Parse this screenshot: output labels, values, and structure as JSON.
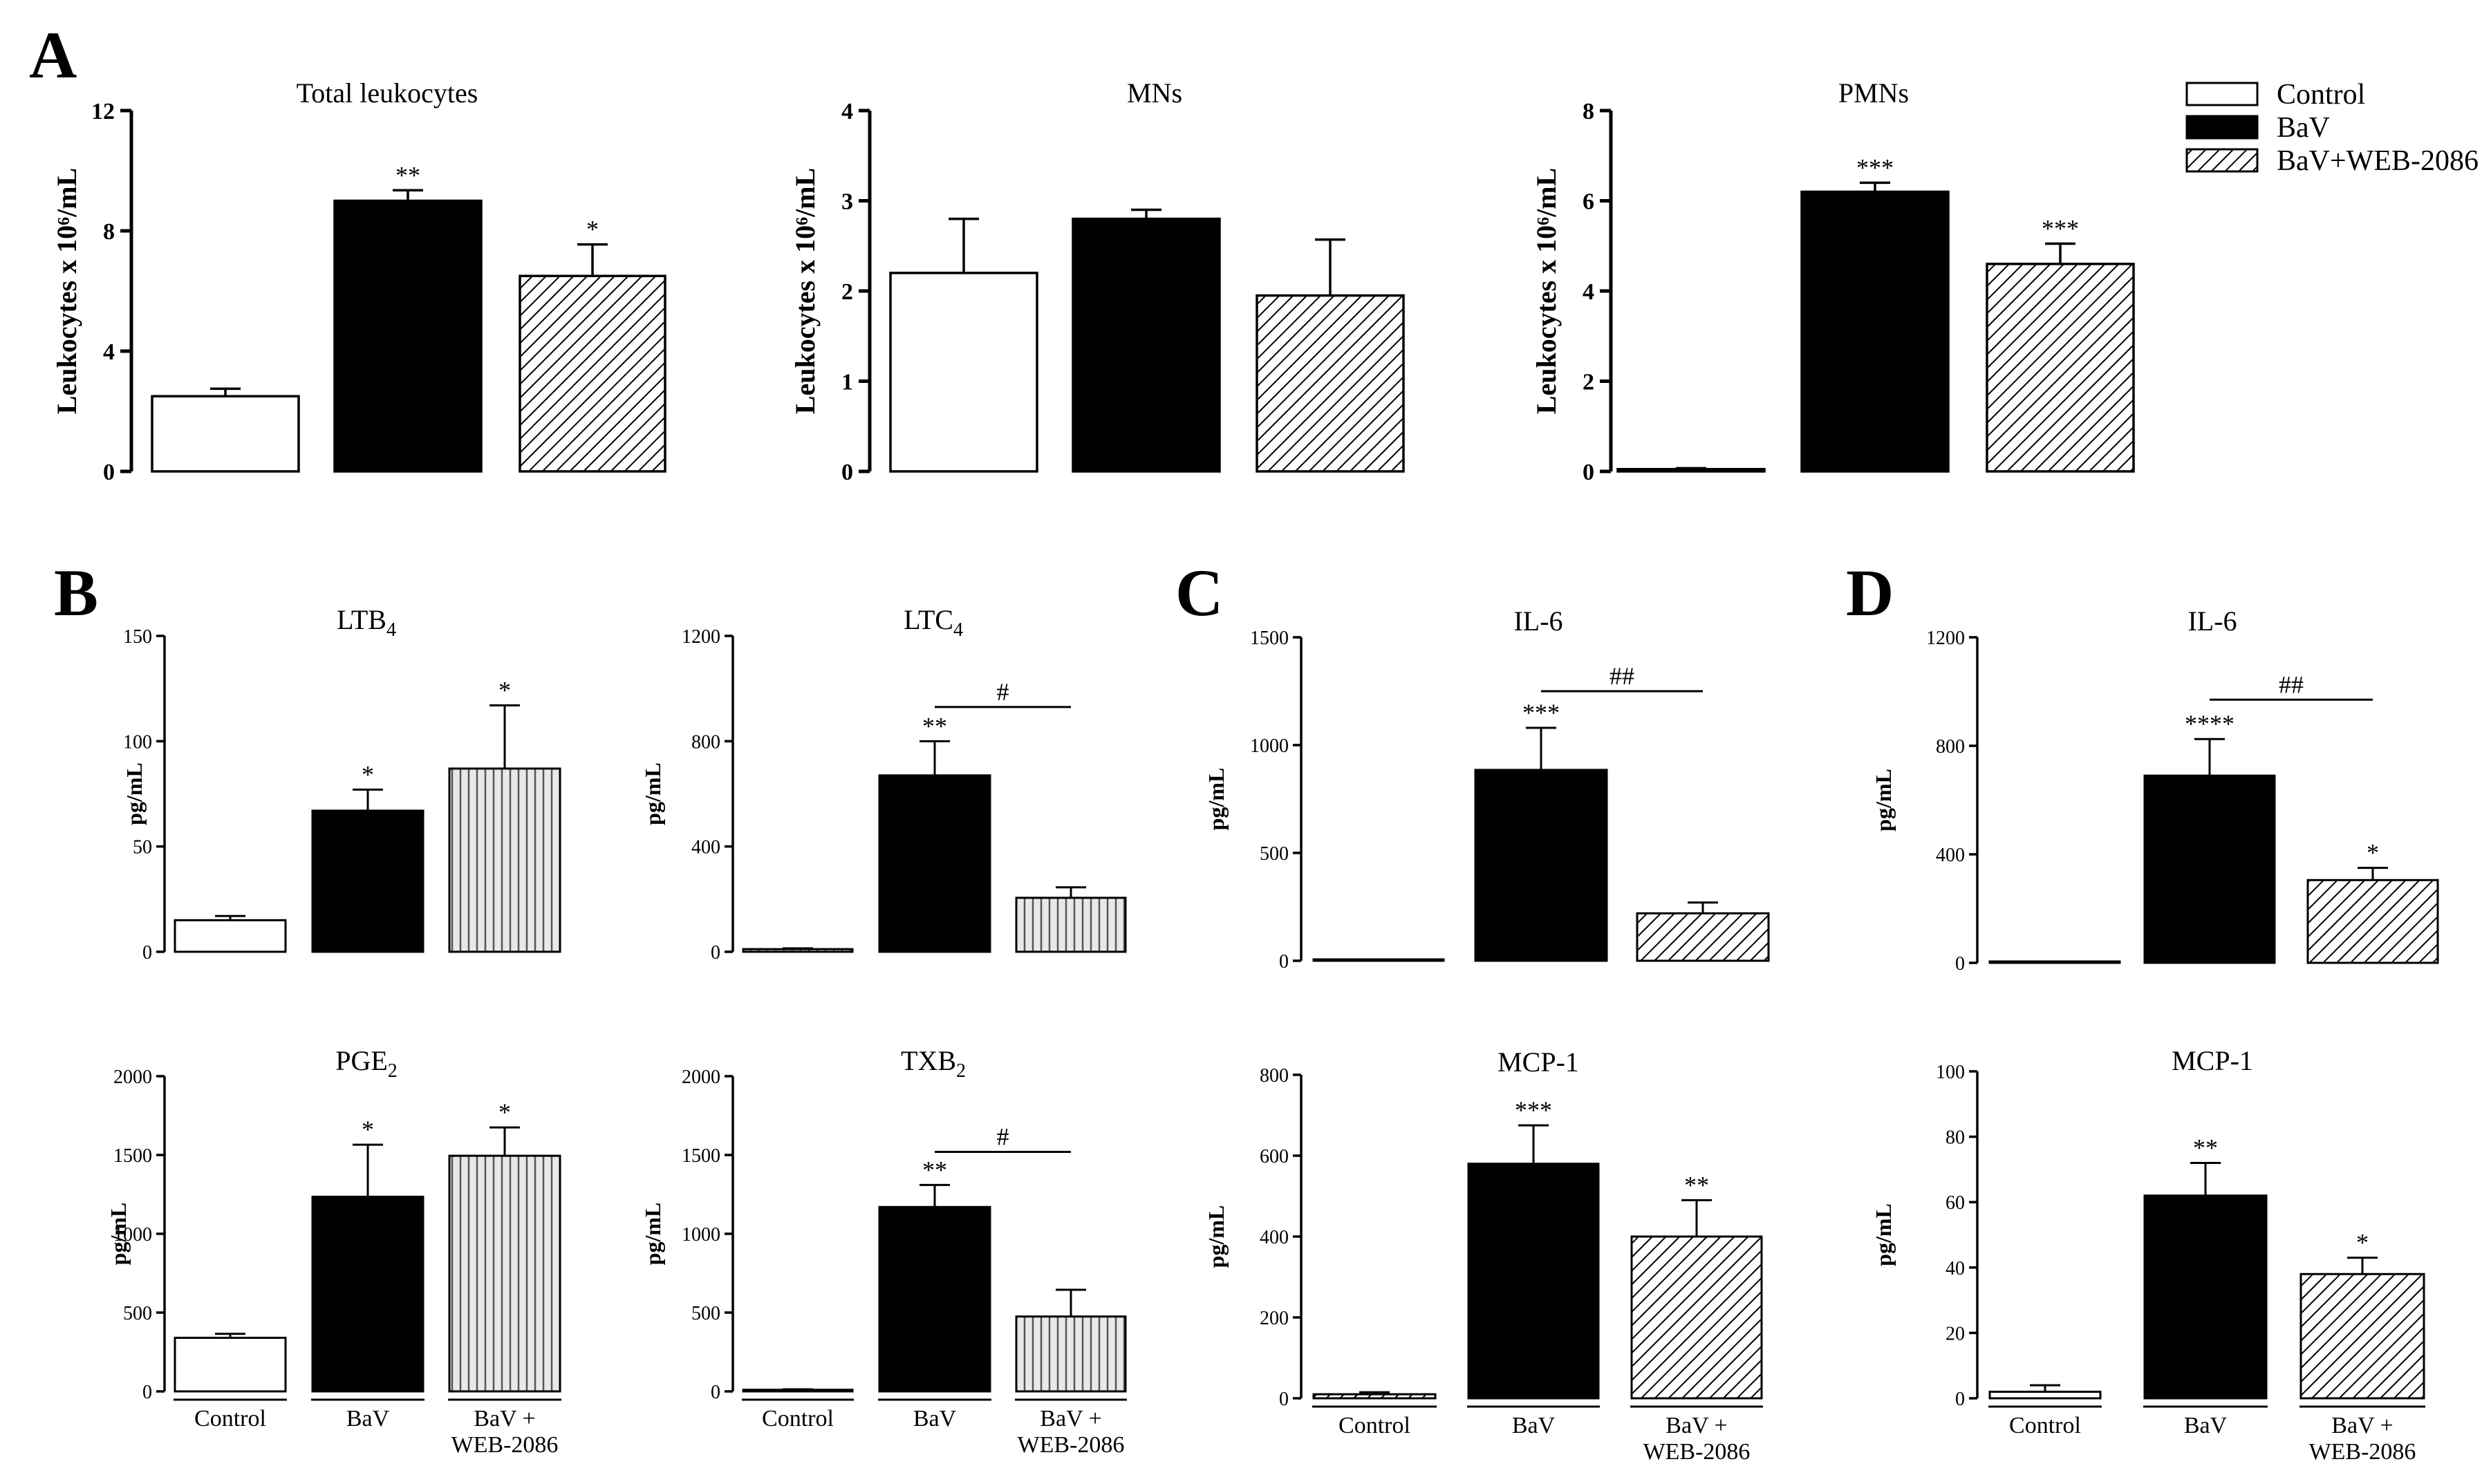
{
  "panels": [
    {
      "letter": "A"
    },
    {
      "letter": "B"
    },
    {
      "letter": "C"
    },
    {
      "letter": "D"
    }
  ],
  "legend": {
    "items": [
      {
        "label": "Control",
        "pattern": "white"
      },
      {
        "label": "BaV",
        "pattern": "black"
      },
      {
        "label": "BaV+WEB-2086",
        "pattern": "diag"
      }
    ]
  },
  "chart_data": [
    {
      "id": "A1",
      "type": "bar",
      "panel": "A",
      "title": "Total leukocytes",
      "ylabel": "Leukocytes x 10⁶/mL",
      "ylim": [
        0,
        12
      ],
      "yticks": [
        0,
        4,
        8,
        12
      ],
      "categories": [
        "Control",
        "BaV",
        "BaV+WEB-2086"
      ],
      "values": [
        2.5,
        9.0,
        6.5
      ],
      "errors": [
        0.25,
        0.35,
        1.05
      ],
      "significance": [
        "",
        "**",
        "*"
      ],
      "patterns": [
        "white",
        "black",
        "diag"
      ],
      "brackets": []
    },
    {
      "id": "A2",
      "type": "bar",
      "panel": "A",
      "title": "MNs",
      "ylabel": "Leukocytes x 10⁶/mL",
      "ylim": [
        0,
        4
      ],
      "yticks": [
        0,
        1,
        2,
        3,
        4
      ],
      "categories": [
        "Control",
        "BaV",
        "BaV+WEB-2086"
      ],
      "values": [
        2.2,
        2.8,
        1.95
      ],
      "errors": [
        0.6,
        0.1,
        0.62
      ],
      "significance": [
        "",
        "",
        ""
      ],
      "patterns": [
        "white",
        "black",
        "diag"
      ],
      "brackets": []
    },
    {
      "id": "A3",
      "type": "bar",
      "panel": "A",
      "title": "PMNs",
      "ylabel": "Leukocytes x 10⁶/mL",
      "ylim": [
        0,
        8
      ],
      "yticks": [
        0,
        2,
        4,
        6,
        8
      ],
      "categories": [
        "Control",
        "BaV",
        "BaV+WEB-2086"
      ],
      "values": [
        0.05,
        6.2,
        4.6
      ],
      "errors": [
        0.02,
        0.2,
        0.45
      ],
      "significance": [
        "",
        "***",
        "***"
      ],
      "patterns": [
        "white",
        "black",
        "diag"
      ],
      "brackets": []
    },
    {
      "id": "B1",
      "type": "bar",
      "panel": "B",
      "title": "LTB",
      "title_sub": "4",
      "ylabel": "pg/mL",
      "ylim": [
        0,
        150
      ],
      "yticks": [
        0,
        50,
        100,
        150
      ],
      "categories": [
        "Control",
        "BaV",
        "BaV +\nWEB-2086"
      ],
      "values": [
        15,
        67,
        87
      ],
      "errors": [
        2,
        10,
        30
      ],
      "significance": [
        "",
        "*",
        "*"
      ],
      "patterns": [
        "white",
        "black",
        "vert"
      ],
      "brackets": []
    },
    {
      "id": "B2",
      "type": "bar",
      "panel": "B",
      "title": "LTC",
      "title_sub": "4",
      "ylabel": "pg/mL",
      "ylim": [
        0,
        1200
      ],
      "yticks": [
        0,
        400,
        800,
        1200
      ],
      "categories": [
        "Control",
        "BaV",
        "BaV +\nWEB-2086"
      ],
      "values": [
        10,
        670,
        205
      ],
      "errors": [
        3,
        130,
        40
      ],
      "significance": [
        "",
        "**",
        ""
      ],
      "patterns": [
        "vert",
        "black",
        "vert"
      ],
      "brackets": [
        {
          "from": 1,
          "to": 2,
          "y": 930,
          "label": "#"
        }
      ]
    },
    {
      "id": "B3",
      "type": "bar",
      "panel": "B",
      "title": "PGE",
      "title_sub": "2",
      "ylabel": "pg/mL",
      "ylim": [
        0,
        2000
      ],
      "yticks": [
        0,
        500,
        1000,
        1500,
        2000
      ],
      "categories": [
        "Control",
        "BaV",
        "BaV +\nWEB-2086"
      ],
      "values": [
        340,
        1235,
        1495
      ],
      "errors": [
        25,
        330,
        180
      ],
      "significance": [
        "",
        "*",
        "*"
      ],
      "patterns": [
        "white",
        "black",
        "vert"
      ],
      "brackets": [],
      "show_categories": true
    },
    {
      "id": "B4",
      "type": "bar",
      "panel": "B",
      "title": "TXB",
      "title_sub": "2",
      "ylabel": "pg/mL",
      "ylim": [
        0,
        2000
      ],
      "yticks": [
        0,
        500,
        1000,
        1500,
        2000
      ],
      "categories": [
        "Control",
        "BaV",
        "BaV +\nWEB-2086"
      ],
      "values": [
        10,
        1170,
        475
      ],
      "errors": [
        3,
        140,
        170
      ],
      "significance": [
        "",
        "**",
        ""
      ],
      "patterns": [
        "vert",
        "black",
        "vert"
      ],
      "brackets": [
        {
          "from": 1,
          "to": 2,
          "y": 1520,
          "label": "#"
        }
      ],
      "show_categories": true
    },
    {
      "id": "C1",
      "type": "bar",
      "panel": "C",
      "title": "IL-6",
      "ylabel": "pg/mL",
      "ylim": [
        0,
        1500
      ],
      "yticks": [
        0,
        500,
        1000,
        1500
      ],
      "categories": [
        "Control",
        "BaV",
        "BaV +\nWEB-2086"
      ],
      "values": [
        3,
        885,
        220
      ],
      "errors": [
        1,
        195,
        50
      ],
      "significance": [
        "",
        "***",
        ""
      ],
      "patterns": [
        "diag",
        "black",
        "diag"
      ],
      "brackets": [
        {
          "from": 1,
          "to": 2,
          "y": 1250,
          "label": "##"
        }
      ]
    },
    {
      "id": "C2",
      "type": "bar",
      "panel": "C",
      "title": "MCP-1",
      "ylabel": "pg/mL",
      "ylim": [
        0,
        800
      ],
      "yticks": [
        0,
        200,
        400,
        600,
        800
      ],
      "categories": [
        "Control",
        "BaV",
        "BaV +\nWEB-2086"
      ],
      "values": [
        10,
        580,
        400
      ],
      "errors": [
        5,
        95,
        90
      ],
      "significance": [
        "",
        "***",
        "**"
      ],
      "patterns": [
        "diag",
        "black",
        "diag"
      ],
      "brackets": [],
      "show_categories": true
    },
    {
      "id": "D1",
      "type": "bar",
      "panel": "D",
      "title": "IL-6",
      "ylabel": "pg/mL",
      "ylim": [
        0,
        1200
      ],
      "yticks": [
        0,
        400,
        800,
        1200
      ],
      "categories": [
        "Control",
        "BaV",
        "BaV +\nWEB-2086"
      ],
      "values": [
        3,
        690,
        305
      ],
      "errors": [
        1,
        135,
        45
      ],
      "significance": [
        "",
        "****",
        "*"
      ],
      "patterns": [
        "diag",
        "black",
        "diag"
      ],
      "brackets": [
        {
          "from": 1,
          "to": 2,
          "y": 970,
          "label": "##"
        }
      ]
    },
    {
      "id": "D2",
      "type": "bar",
      "panel": "D",
      "title": "MCP-1",
      "ylabel": "pg/mL",
      "ylim": [
        0,
        100
      ],
      "yticks": [
        0,
        20,
        40,
        60,
        80,
        100
      ],
      "categories": [
        "Control",
        "BaV",
        "BaV +\nWEB-2086"
      ],
      "values": [
        2,
        62,
        38
      ],
      "errors": [
        2,
        10,
        5
      ],
      "significance": [
        "",
        "**",
        "*"
      ],
      "patterns": [
        "white",
        "black",
        "diag"
      ],
      "brackets": [],
      "show_categories": true
    }
  ]
}
